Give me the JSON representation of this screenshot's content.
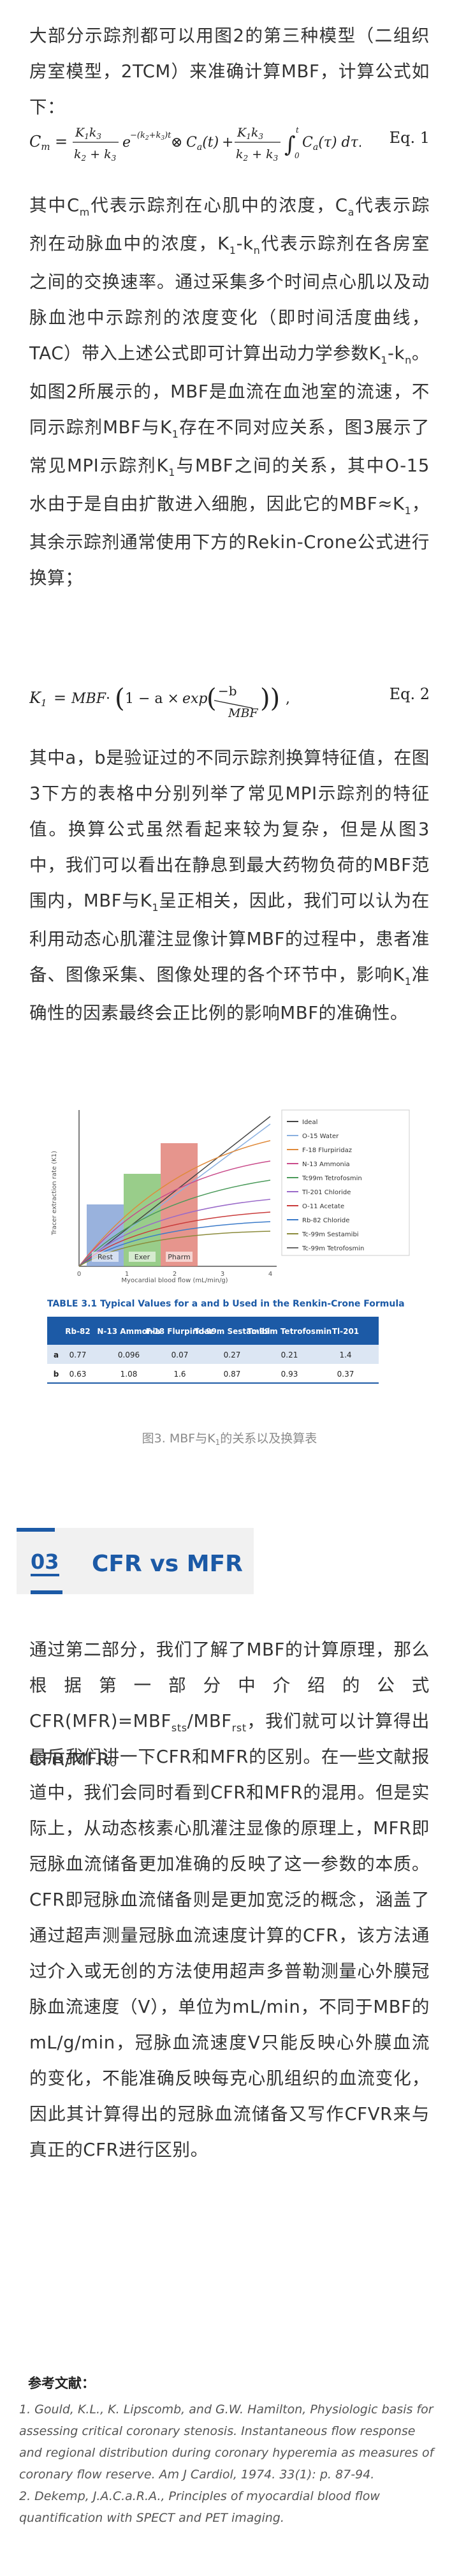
{
  "intro": {
    "p1": "大部分示踪剂都可以用图2的第三种模型（二组织房室模型，2TCM）来准确计算MBF，计算公式如下：",
    "eq1_label": "Eq. 1",
    "p2_a": "其中C",
    "p2_sub1": "m",
    "p2_b": "代表示踪剂在心肌中的浓度，C",
    "p2_sub2": "a",
    "p2_c": "代表示踪剂在动脉血中的浓度，K",
    "p2_sub3": "1",
    "p2_d": "-k",
    "p2_sub4": "n",
    "p2_e": "代表示踪剂在各房室之间的交换速率。通过采集多个时间点心肌以及动脉血池中示踪剂的浓度变化（即时间活度曲线，TAC）带入上述公式即可计算出动力学参数K",
    "p2_sub5": "1",
    "p2_f": "-k",
    "p2_sub6": "n",
    "p2_g": "。如图2所展示的，MBF是血流在血池室的流速，不同示踪剂MBF与K",
    "p2_sub7": "1",
    "p2_h": "存在不同对应关系，图3展示了常见MPI示踪剂K",
    "p2_sub8": "1",
    "p2_i": "与MBF之间的关系，其中O-15水由于是自由扩散进入细胞，因此它的MBF≈K",
    "p2_sub9": "1",
    "p2_j": "，其余示踪剂通常使用下方的Rekin-Crone公式进行换算；",
    "eq2_label": "Eq. 2",
    "p3_a": "其中a，b是验证过的不同示踪剂换算特征值，在图3下方的表格中分别列举了常见MPI示踪剂的特征值。换算公式虽然看起来较为复杂，但是从图3中，我们可以看出在静息到最大药物负荷的MBF范围内，MBF与K",
    "p3_sub1": "1",
    "p3_b": "呈正相关，因此，我们可以认为在利用动态心肌灌注显像计算MBF的过程中，患者准备、图像采集、图像处理的各个环节中，影响K",
    "p3_sub2": "1",
    "p3_c": "准确性的因素最终会正比例的影响MBF的准确性。"
  },
  "figure": {
    "caption_a": "图3. MBF与K",
    "caption_sub": "1",
    "caption_b": "的关系以及换算表",
    "ylabel": "Tracer extraction rate (K1)",
    "xlabel": "Myocardial blood flow (mL/min/g)",
    "bar_labels": [
      "Rest",
      "Exer",
      "Pharm"
    ],
    "legend": [
      "Ideal",
      "O-15 Water",
      "F-18 Flurpiridaz",
      "N-13 Ammonia",
      "Tc99m Tetrofosmin",
      "Tl-201 Chloride",
      "O-11 Acetate",
      "Rb-82 Chloride",
      "Tc-99m Sestamibi",
      "Tc-99m Tetrofosmin"
    ],
    "table_title": "TABLE 3.1  Typical Values for a and b Used in the Renkin-Crone Formula",
    "table_headers": [
      "Rb-82",
      "N-13 Ammonia",
      "F-18 Flurpiridaz",
      "Tc-99m Sestamibi",
      "Tc-99m Tetrofosmin",
      "Tl-201"
    ],
    "table_rows": [
      {
        "label": "a",
        "values": [
          "0.77",
          "0.096",
          "0.07",
          "0.27",
          "0.21",
          "1.4"
        ]
      },
      {
        "label": "b",
        "values": [
          "0.63",
          "1.08",
          "1.6",
          "0.87",
          "0.93",
          "0.37"
        ]
      }
    ]
  },
  "section": {
    "number": "03",
    "title": "CFR vs MFR"
  },
  "part3": {
    "p1_a": "通过第二部分，我们了解了MBF的计算原理，那么根据第一部分中介绍的公式CFR(MFR)=MBF",
    "p1_sub1": "sts",
    "p1_b": "/MBF",
    "p1_sub2": "rst",
    "p1_c": "，我们就可以计算得出CFR/MFR。",
    "p2": "最后我们讲一下CFR和MFR的区别。在一些文献报道中，我们会同时看到CFR和MFR的混用。但是实际上，从动态核素心肌灌注显像的原理上，MFR即冠脉血流储备更加准确的反映了这一参数的本质。CFR即冠脉血流储备则是更加宽泛的概念，涵盖了通过超声测量冠脉血流速度计算的CFR，该方法通过介入或无创的方法使用超声多普勒测量心外膜冠脉血流速度（V），单位为mL/min，不同于MBF的mL/g/min，冠脉血流速度V只能反映心外膜血流的变化，不能准确反映每克心肌组织的血流变化，因此其计算得出的冠脉血流储备又写作CFVR来与真正的CFR进行区别。"
  },
  "references": {
    "heading": "参考文献：",
    "items": [
      "1. Gould, K.L., K. Lipscomb, and G.W. Hamilton, Physiologic basis for assessing critical coronary stenosis. Instantaneous flow response and regional distribution during coronary hyperemia as measures of coronary flow reserve. Am J Cardiol, 1974. 33(1): p. 87-94.",
      "2. Dekemp, J.A.C.a.R.A., Principles of myocardial blood flow quantification with SPECT and PET imaging."
    ]
  },
  "colors": {
    "accent": "#1c5aa6",
    "text": "#333333",
    "caption": "#8a8a8a",
    "rest": "#7f9fd4",
    "exer": "#7fc06d",
    "pharm": "#e07a70"
  }
}
